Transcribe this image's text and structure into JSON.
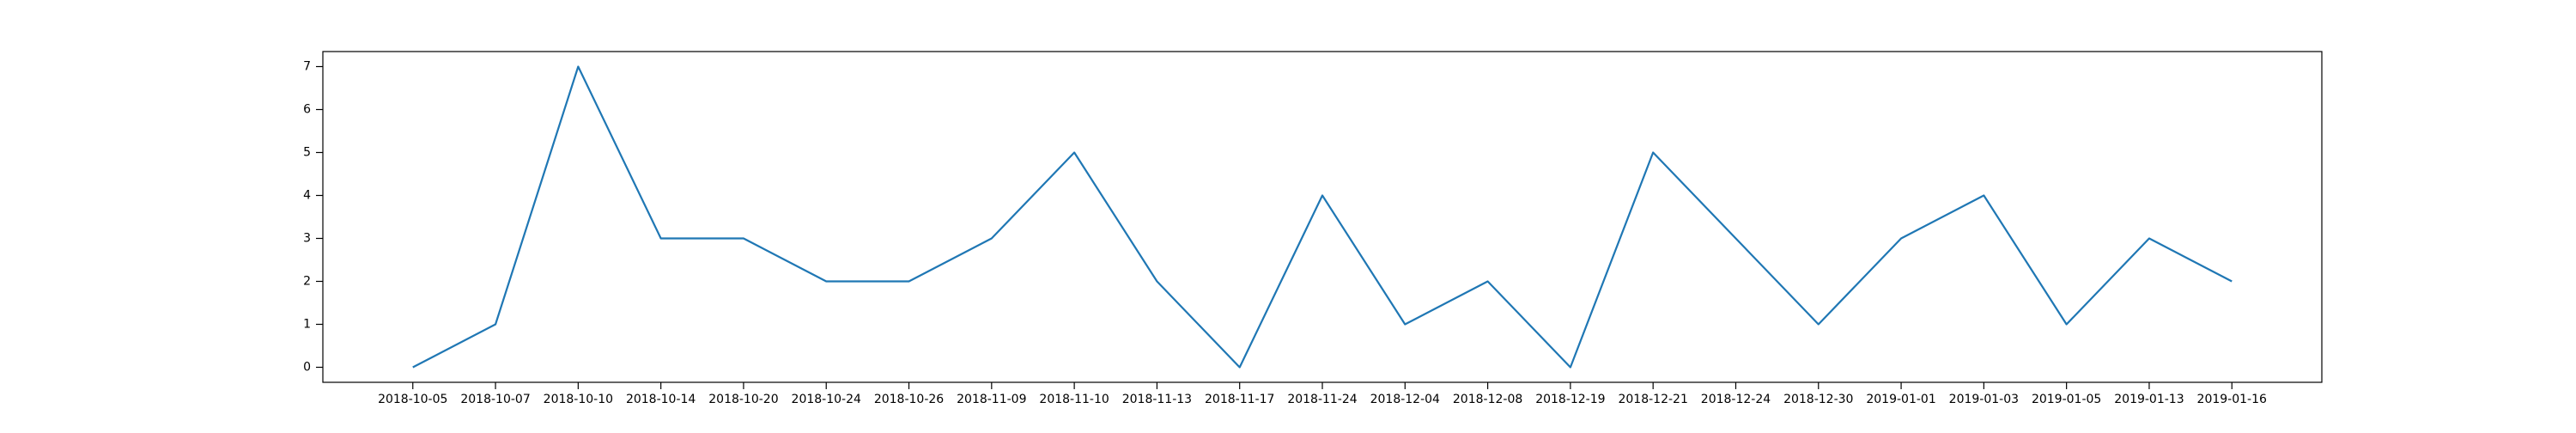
{
  "chart_data": {
    "type": "line",
    "title": "",
    "xlabel": "",
    "ylabel": "",
    "x": [
      "2018-10-05",
      "2018-10-07",
      "2018-10-10",
      "2018-10-14",
      "2018-10-20",
      "2018-10-24",
      "2018-10-26",
      "2018-11-09",
      "2018-11-10",
      "2018-11-13",
      "2018-11-17",
      "2018-11-24",
      "2018-12-04",
      "2018-12-08",
      "2018-12-19",
      "2018-12-21",
      "2018-12-24",
      "2018-12-30",
      "2019-01-01",
      "2019-01-03",
      "2019-01-05",
      "2019-01-13",
      "2019-01-16"
    ],
    "series": [
      {
        "values": [
          0,
          1,
          7,
          3,
          3,
          2,
          2,
          3,
          5,
          2,
          0,
          4,
          1,
          2,
          0,
          5,
          3,
          1,
          3,
          4,
          1,
          3,
          2
        ],
        "color": "#1f77b4"
      }
    ],
    "yticks": [
      "0",
      "1",
      "2",
      "3",
      "4",
      "5",
      "6",
      "7"
    ],
    "ylim": [
      -0.35,
      7.35
    ],
    "grid": false,
    "legend": "none"
  }
}
